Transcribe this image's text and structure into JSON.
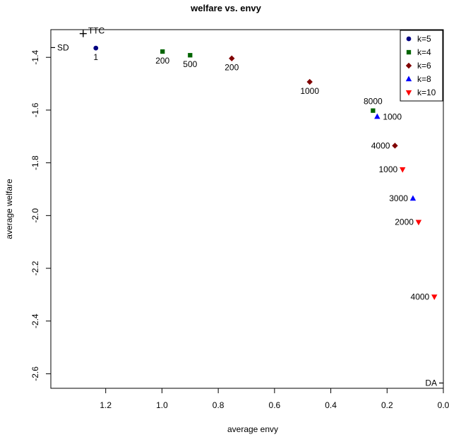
{
  "chart_data": {
    "type": "scatter",
    "title": "welfare vs. envy",
    "xlabel": "average envy",
    "ylabel": "average welfare",
    "xlim": [
      1.395,
      0.0
    ],
    "ylim": [
      -2.655,
      -1.295
    ],
    "x_ticks": [
      1.2,
      1.0,
      0.8,
      0.6,
      0.4,
      0.2,
      0.0
    ],
    "x_tick_labels": [
      "1.2",
      "1.0",
      "0.8",
      "0.6",
      "0.4",
      "0.2",
      "0.0"
    ],
    "y_ticks": [
      -1.4,
      -1.6,
      -1.8,
      -2.0,
      -2.2,
      -2.4,
      -2.6
    ],
    "y_tick_labels": [
      "-1.4",
      "-1.6",
      "-1.8",
      "-2.0",
      "-2.2",
      "-2.4",
      "-2.6"
    ],
    "grid": false,
    "legend": {
      "placement": "top-right",
      "entries": [
        {
          "label": "k=5",
          "marker": "circle",
          "color": "#000080"
        },
        {
          "label": "k=4",
          "marker": "square",
          "color": "#006400"
        },
        {
          "label": "k=6",
          "marker": "diamond",
          "color": "#800000"
        },
        {
          "label": "k=8",
          "marker": "triangle-up",
          "color": "#0000ff"
        },
        {
          "label": "k=10",
          "marker": "triangle-down",
          "color": "#ff0000"
        }
      ]
    },
    "series": [
      {
        "name": "k=5",
        "marker": "circle",
        "color": "#000080",
        "points": [
          {
            "x": 1.235,
            "y": -1.365,
            "label": "1",
            "pos": "below"
          }
        ]
      },
      {
        "name": "k=4",
        "marker": "square",
        "color": "#006400",
        "points": [
          {
            "x": 0.998,
            "y": -1.378,
            "label": "200",
            "pos": "below"
          },
          {
            "x": 0.9,
            "y": -1.392,
            "label": "500",
            "pos": "below"
          },
          {
            "x": 0.25,
            "y": -1.602,
            "label": "8000",
            "pos": "above"
          }
        ]
      },
      {
        "name": "k=6",
        "marker": "diamond",
        "color": "#800000",
        "points": [
          {
            "x": 0.752,
            "y": -1.404,
            "label": "200",
            "pos": "below"
          },
          {
            "x": 0.475,
            "y": -1.493,
            "label": "1000",
            "pos": "below"
          },
          {
            "x": 0.172,
            "y": -1.735,
            "label": "4000",
            "pos": "left"
          }
        ]
      },
      {
        "name": "k=8",
        "marker": "triangle-up",
        "color": "#0000ff",
        "points": [
          {
            "x": 0.235,
            "y": -1.625,
            "label": "1000",
            "pos": "right"
          },
          {
            "x": 0.108,
            "y": -1.935,
            "label": "3000",
            "pos": "left"
          }
        ]
      },
      {
        "name": "k=10",
        "marker": "triangle-down",
        "color": "#ff0000",
        "points": [
          {
            "x": 0.145,
            "y": -1.825,
            "label": "1000",
            "pos": "left"
          },
          {
            "x": 0.088,
            "y": -2.025,
            "label": "2000",
            "pos": "left"
          },
          {
            "x": 0.032,
            "y": -2.308,
            "label": "4000",
            "pos": "left"
          }
        ]
      }
    ],
    "annotations": [
      {
        "label": "TTC",
        "x": 1.28,
        "y": -1.31,
        "marker": "plus",
        "pos": "right"
      },
      {
        "label": "SD",
        "x": 1.395,
        "y": -1.363,
        "marker": "tick-left",
        "pos": "left"
      },
      {
        "label": "DA",
        "x": 0.0,
        "y": -2.635,
        "marker": "tick-right",
        "pos": "left"
      }
    ]
  }
}
